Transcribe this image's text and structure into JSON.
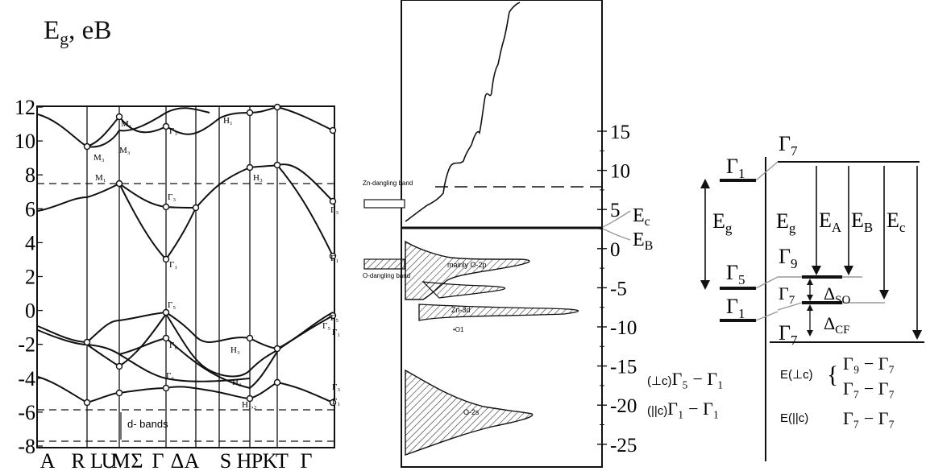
{
  "title": {
    "main": "E",
    "sub": "g",
    "rest": ", eB"
  },
  "band_structure": {
    "y_ticks": [
      "12",
      "10",
      "8",
      "6",
      "4",
      "2",
      "0",
      "-2",
      "-4",
      "-6",
      "-8"
    ],
    "x_ticks": [
      "A",
      "R",
      "L",
      "U",
      "M",
      "Σ",
      "Γ",
      "Δ",
      "A",
      "S",
      "H",
      "P",
      "K",
      "T",
      "Γ"
    ],
    "d_bands": "d- bands",
    "point_labels": [
      "M₁",
      "M₃",
      "M₃",
      "M₁",
      "Γ₃",
      "Γ₃",
      "Γ₁",
      "H₁",
      "H₃",
      "Γ₃",
      "Γ₁",
      "Γ₅",
      "Γ₆",
      "H₃",
      "H₃",
      "H₁,₂",
      "Γ₅",
      "Γ₁",
      "Γ₅",
      "Γ₆",
      "Γ₃",
      "Γ₁"
    ]
  },
  "dos": {
    "y_ticks": [
      "15",
      "10",
      "5",
      "0",
      "-5",
      "-10",
      "-15",
      "-20",
      "-25"
    ],
    "label_zn_dangling": "Zn-dangling band",
    "label_o_dangling": "O-dangling band",
    "label_o2p": "mainly O-2p",
    "label_zn3d": "Zn-3d",
    "label_o1": "•O1",
    "label_o2s": "O-2s",
    "label_ec": "E",
    "label_ec_sub": "c",
    "label_eb": "E",
    "label_eb_sub": "B"
  },
  "levels": {
    "left_g1_top": "Γ",
    "left_g1_top_sub": "1",
    "left_g5": "Γ",
    "left_g5_sub": "5",
    "left_g1_bot": "Γ",
    "left_g1_bot_sub": "1",
    "left_eg": "E",
    "left_eg_sub": "g",
    "right_g7_top": "Γ",
    "right_g7_top_sub": "7",
    "center_eg": "E",
    "center_eg_sub": "g",
    "right_g9": "Γ",
    "right_g9_sub": "9",
    "right_g7_mid": "Γ",
    "right_g7_mid_sub": "7",
    "right_g7_bot": "Γ",
    "right_g7_bot_sub": "7",
    "ea": "E",
    "ea_sub": "A",
    "eb": "E",
    "eb_sub": "B",
    "ec": "E",
    "ec_sub": "c",
    "dso": "Δ",
    "dso_sub": "SO",
    "dcf": "Δ",
    "dcf_sub": "CF",
    "sel_perp_prefix": "(⊥c)",
    "sel_perp_expr": "Γ₅ − Γ₁",
    "sel_par_prefix": "(||c)",
    "sel_par_expr": "Γ₁ − Γ₁",
    "e_perp": "E(⊥c)",
    "e_perp_expr1": "Γ₉ − Γ₇",
    "e_perp_expr2": "Γ₇ − Γ₇",
    "e_par": "E(||c)",
    "e_par_expr": "Γ₇ − Γ₇"
  },
  "colors": {
    "ink": "#111111",
    "hatch": "#444444",
    "grey_line": "#9a9a9a"
  }
}
